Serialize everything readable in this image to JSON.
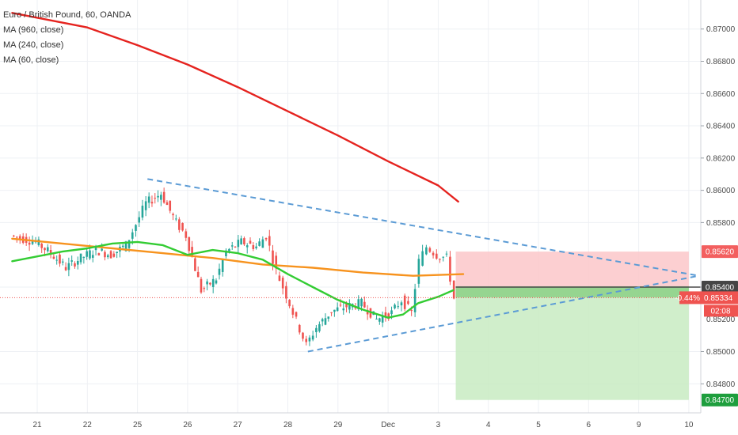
{
  "chart_data": {
    "type": "line",
    "title": "Euro / British Pound, 60, OANDA",
    "indicators": [
      "MA (960, close)",
      "MA (240, close)",
      "MA (60, close)"
    ],
    "ylim": [
      0.8462,
      0.8718
    ],
    "y_ticks": [
      "0.87000",
      "0.86800",
      "0.86600",
      "0.86400",
      "0.86200",
      "0.86000",
      "0.85800",
      "0.85400",
      "0.85000",
      "0.84800"
    ],
    "y_tick_values": [
      0.87,
      0.868,
      0.866,
      0.864,
      0.862,
      0.86,
      0.858,
      0.854,
      0.85,
      0.848
    ],
    "x_ticks": [
      "21",
      "22",
      "25",
      "26",
      "27",
      "28",
      "29",
      "Dec",
      "3",
      "4",
      "5",
      "6",
      "9",
      "10"
    ],
    "x_tick_index": [
      0,
      1,
      2,
      3,
      4,
      5,
      6,
      7,
      8,
      9,
      10,
      11,
      12,
      13
    ],
    "series": [
      {
        "name": "MA (960, close)",
        "color": "#e5231f",
        "points": [
          [
            -0.5,
            0.871
          ],
          [
            1,
            0.8701
          ],
          [
            2,
            0.869
          ],
          [
            3,
            0.8678
          ],
          [
            4,
            0.8664
          ],
          [
            5,
            0.8649
          ],
          [
            6,
            0.8634
          ],
          [
            7,
            0.8618
          ],
          [
            8,
            0.8603
          ],
          [
            8.4,
            0.8593
          ]
        ]
      },
      {
        "name": "MA (240, close)",
        "color": "#f7931e",
        "points": [
          [
            -0.5,
            0.857
          ],
          [
            0.5,
            0.8567
          ],
          [
            1.5,
            0.8564
          ],
          [
            2.5,
            0.8561
          ],
          [
            3.5,
            0.8558
          ],
          [
            4.5,
            0.8554
          ],
          [
            5.5,
            0.8552
          ],
          [
            6.5,
            0.8549
          ],
          [
            7.5,
            0.8547
          ],
          [
            8.5,
            0.8548
          ]
        ]
      },
      {
        "name": "MA (60, close)",
        "color": "#33cc33",
        "points": [
          [
            -0.5,
            0.8556
          ],
          [
            0,
            0.8559
          ],
          [
            0.5,
            0.8562
          ],
          [
            1,
            0.8564
          ],
          [
            1.5,
            0.8567
          ],
          [
            2,
            0.8568
          ],
          [
            2.5,
            0.8566
          ],
          [
            3,
            0.856
          ],
          [
            3.5,
            0.8563
          ],
          [
            4,
            0.8561
          ],
          [
            4.5,
            0.8557
          ],
          [
            5,
            0.8548
          ],
          [
            5.5,
            0.854
          ],
          [
            6,
            0.8532
          ],
          [
            6.5,
            0.8526
          ],
          [
            7,
            0.8521
          ],
          [
            7.3,
            0.8523
          ],
          [
            7.6,
            0.853
          ],
          [
            8,
            0.8534
          ],
          [
            8.3,
            0.8538
          ]
        ]
      }
    ],
    "price_line": [
      [
        -0.5,
        0.8572
      ],
      [
        0,
        0.8568
      ],
      [
        0.3,
        0.8561
      ],
      [
        0.6,
        0.8552
      ],
      [
        0.9,
        0.8558
      ],
      [
        1.2,
        0.8563
      ],
      [
        1.5,
        0.856
      ],
      [
        1.8,
        0.8566
      ],
      [
        2.2,
        0.8592
      ],
      [
        2.5,
        0.8598
      ],
      [
        2.8,
        0.858
      ],
      [
        3.0,
        0.8572
      ],
      [
        3.3,
        0.8538
      ],
      [
        3.6,
        0.8545
      ],
      [
        3.8,
        0.8562
      ],
      [
        4.1,
        0.8568
      ],
      [
        4.4,
        0.8565
      ],
      [
        4.6,
        0.8572
      ],
      [
        4.8,
        0.855
      ],
      [
        5.0,
        0.8535
      ],
      [
        5.2,
        0.8519
      ],
      [
        5.4,
        0.8504
      ],
      [
        5.6,
        0.8515
      ],
      [
        5.9,
        0.8525
      ],
      [
        6.2,
        0.8528
      ],
      [
        6.5,
        0.853
      ],
      [
        6.8,
        0.852
      ],
      [
        7.1,
        0.8524
      ],
      [
        7.3,
        0.8532
      ],
      [
        7.5,
        0.8524
      ],
      [
        7.65,
        0.8556
      ],
      [
        7.8,
        0.8565
      ],
      [
        8.0,
        0.856
      ],
      [
        8.2,
        0.8558
      ],
      [
        8.35,
        0.8533
      ]
    ],
    "trendlines": [
      {
        "from": [
          2.2,
          0.8607
        ],
        "to": [
          13.2,
          0.8547
        ]
      },
      {
        "from": [
          5.4,
          0.85
        ],
        "to": [
          13.2,
          0.8547
        ]
      }
    ],
    "position_zones": {
      "x_start": 8.35,
      "x_end": 13.0,
      "stop_top": 0.8562,
      "entry": 0.854,
      "target": 0.847
    },
    "labels": {
      "stop_price": "0.85620",
      "entry_price": "0.85400",
      "current_change": "-0.44%",
      "current_price": "0.85334",
      "countdown": "02:08",
      "target_price": "0.84700",
      "hidden_tick": "0.85200"
    },
    "grid": true
  },
  "colors": {
    "up": "#26a69a",
    "down": "#ef5350",
    "trend": "#5b9bd5",
    "stop_zone": "#fbc7c9",
    "target_zone": "#c8ebc2",
    "entry_band": "#8fd18a",
    "current_badge": "#ef5350",
    "stop_badge": "#f35f5f",
    "target_badge": "#1e9e3d",
    "entry_badge": "#454545"
  }
}
